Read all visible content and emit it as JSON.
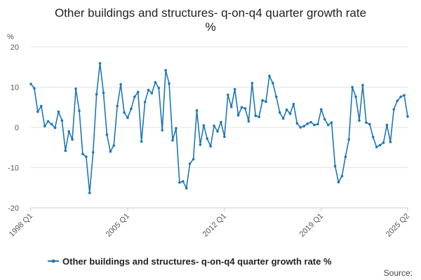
{
  "chart_data": {
    "type": "line",
    "title_lines": [
      "Other buildings and structures- q-on-q4 quarter growth rate",
      "%"
    ],
    "ylabel": "%",
    "ylim": [
      -20,
      20
    ],
    "yticks": [
      -20,
      -10,
      0,
      10,
      20
    ],
    "x_range": [
      "1998 Q1",
      "2025 Q2"
    ],
    "xtick_labels": [
      "1998 Q1",
      "2005 Q1",
      "2012 Q1",
      "2019 Q1",
      "2025 Q2"
    ],
    "grid": true,
    "legend_position": "bottom",
    "series_color": "#1f77b4",
    "series": [
      {
        "name": "Other buildings and structures- q-on-q4 quarter growth rate %",
        "values": [
          10.8,
          9.7,
          3.9,
          5.3,
          0.3,
          1.5,
          0.8,
          -0.1,
          3.9,
          1.7,
          -5.8,
          -1.0,
          -3.0,
          9.6,
          4.1,
          -6.6,
          -7.3,
          -16.3,
          -6.2,
          8.2,
          15.9,
          8.6,
          -1.8,
          -6.0,
          -4.5,
          5.3,
          10.7,
          3.7,
          2.4,
          4.6,
          7.6,
          8.8,
          -3.5,
          6.3,
          9.3,
          8.5,
          11.2,
          9.8,
          -0.7,
          14.2,
          10.9,
          -3.2,
          -0.2,
          -13.7,
          -13.4,
          -15.1,
          -9.0,
          -7.9,
          4.2,
          -4.3,
          0.5,
          -2.8,
          -4.7,
          0.4,
          -1.0,
          1.3,
          -2.3,
          8.1,
          5.1,
          9.5,
          3.0,
          5.0,
          4.7,
          1.5,
          11.0,
          2.9,
          2.6,
          6.7,
          6.4,
          12.8,
          11.0,
          7.6,
          3.7,
          2.2,
          4.4,
          3.4,
          5.8,
          1.0,
          0.0,
          0.3,
          0.9,
          1.3,
          0.6,
          0.8,
          4.5,
          2.0,
          0.6,
          1.2,
          -9.6,
          -13.6,
          -12.1,
          -7.3,
          -3.0,
          10.0,
          7.6,
          1.7,
          10.5,
          1.2,
          0.8,
          -2.4,
          -4.9,
          -4.4,
          -3.8,
          0.6,
          -3.6,
          4.5,
          6.6,
          7.6,
          8.0,
          2.7
        ]
      }
    ]
  },
  "source_label": "Source:"
}
